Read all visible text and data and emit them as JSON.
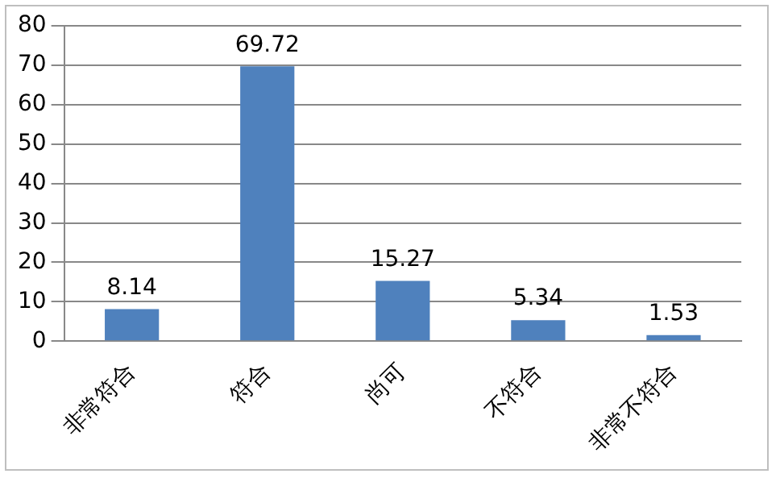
{
  "chart_data": {
    "type": "bar",
    "categories": [
      "非常符合",
      "符合",
      "尚可",
      "不符合",
      "非常不符合"
    ],
    "values": [
      8.14,
      69.72,
      15.27,
      5.34,
      1.53
    ],
    "color": "#4f81bd",
    "ylim": [
      0,
      80
    ],
    "yticks": [
      0,
      10,
      20,
      30,
      40,
      50,
      60,
      70,
      80
    ],
    "grid": "y",
    "data_labels": true
  }
}
